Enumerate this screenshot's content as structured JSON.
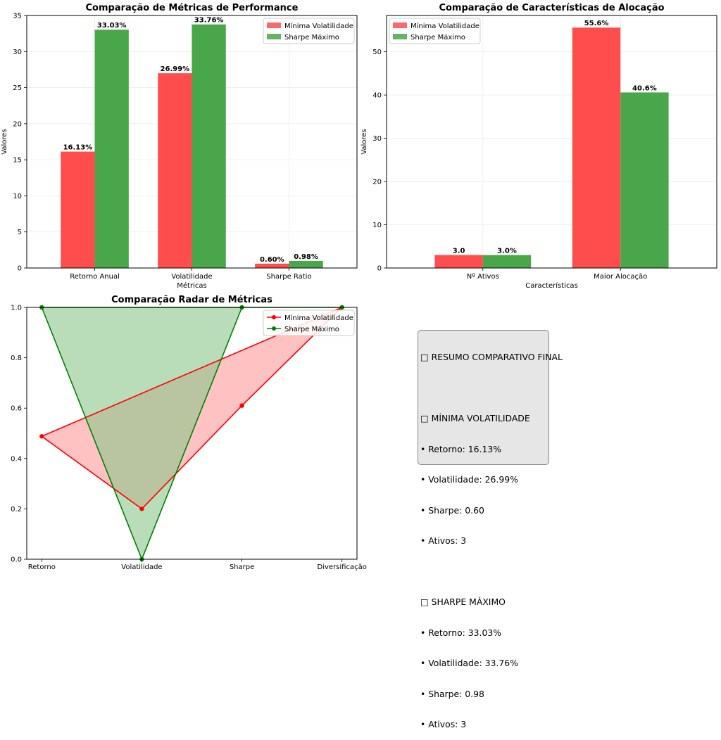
{
  "chart_data": [
    {
      "type": "bar",
      "title": "Comparação de Métricas de Performance",
      "xlabel": "Métricas",
      "ylabel": "Valores",
      "ylim": [
        0,
        35
      ],
      "yticks": [
        0,
        5,
        10,
        15,
        20,
        25,
        30,
        35
      ],
      "categories": [
        "Retorno Anual",
        "Volatilidade",
        "Sharpe Ratio"
      ],
      "series": [
        {
          "name": "Mínima Volatilidade",
          "color": "#ff4d4d",
          "values": [
            16.13,
            26.99,
            0.6
          ],
          "labels": [
            "16.13%",
            "26.99%",
            "0.60%"
          ]
        },
        {
          "name": "Sharpe Máximo",
          "color": "#4aa64a",
          "values": [
            33.03,
            33.76,
            0.98
          ],
          "labels": [
            "33.03%",
            "33.76%",
            "0.98%"
          ]
        }
      ],
      "legend": "top-right",
      "grid": true
    },
    {
      "type": "bar",
      "title": "Comparação de Características de Alocação",
      "xlabel": "Características",
      "ylabel": "Valores",
      "ylim": [
        0,
        58.4
      ],
      "yticks": [
        0,
        10,
        20,
        30,
        40,
        50
      ],
      "categories": [
        "Nº Ativos",
        "Maior Alocação"
      ],
      "series": [
        {
          "name": "Mínima Volatilidade",
          "color": "#ff4d4d",
          "values": [
            3.0,
            55.6
          ],
          "labels": [
            "3.0",
            "55.6%"
          ]
        },
        {
          "name": "Sharpe Máximo",
          "color": "#4aa64a",
          "values": [
            3.0,
            40.6
          ],
          "labels": [
            "3.0%",
            "40.6%"
          ]
        }
      ],
      "legend": "top-left",
      "grid": true
    },
    {
      "type": "line",
      "title": "Comparação Radar de Métricas",
      "categories": [
        "Retorno",
        "Volatilidade",
        "Sharpe",
        "Diversificação"
      ],
      "ylim": [
        0,
        1
      ],
      "yticks": [
        "0.0",
        "0.2",
        "0.4",
        "0.6",
        "0.8",
        "1.0"
      ],
      "series": [
        {
          "name": "Mínima Volatilidade",
          "color": "#ff0000",
          "fill": "#ff9999",
          "values": [
            0.488,
            0.2,
            0.61,
            1.0
          ]
        },
        {
          "name": "Sharpe Máximo",
          "color": "#008000",
          "fill": "#8bc68b",
          "values": [
            1.0,
            0.0,
            1.0,
            1.0
          ]
        }
      ],
      "legend": "top-right"
    }
  ],
  "summary": {
    "lines": [
      "□ RESUMO COMPARATIVO FINAL",
      "",
      "□ MÍNIMA VOLATILIDADE",
      "• Retorno: 16.13%",
      "• Volatilidade: 26.99%",
      "• Sharpe: 0.60",
      "• Ativos: 3",
      "",
      "□ SHARPE MÁXIMO",
      "• Retorno: 33.03%",
      "• Volatilidade: 33.76%",
      "• Sharpe: 0.98",
      "• Ativos: 3"
    ]
  }
}
